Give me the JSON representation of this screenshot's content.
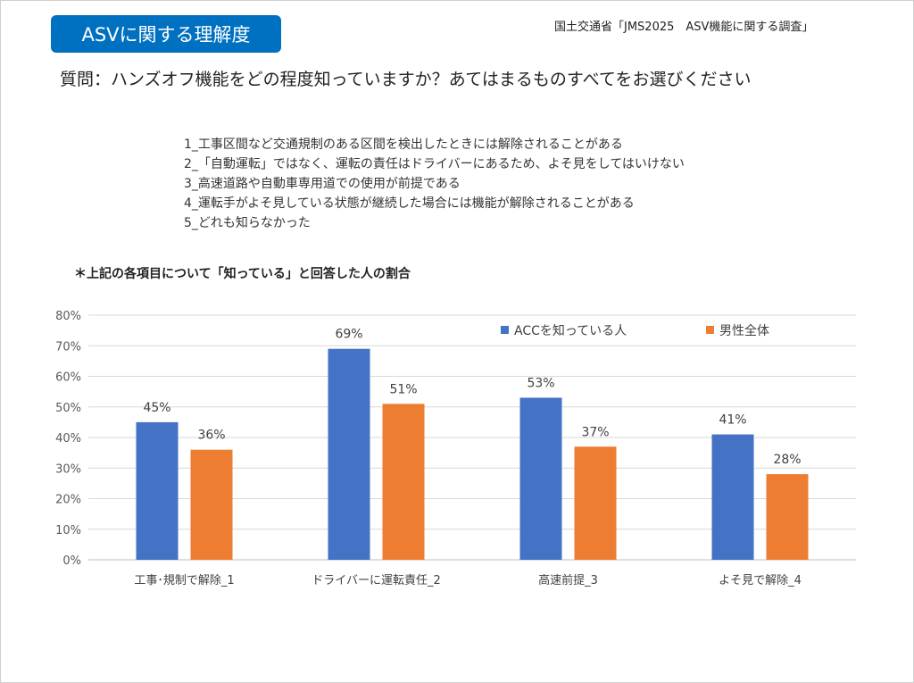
{
  "header": {
    "badge": "ASVに関する理解度",
    "source": "国土交通省「JMS2025　ASV機能に関する調査」"
  },
  "question": "質問：ハンズオフ機能をどの程度知っていますか？あてはまるものすべてをお選びください",
  "options": [
    "1_工事区間など交通規制のある区間を検出したときには解除されることがある",
    "2_「自動運転」ではなく、運転の責任はドライバーにあるため、よそ見をしてはいけない",
    "3_高速道路や自動車専用道での使用が前提である",
    "4_運転手がよそ見している状態が継続した場合には機能が解除されることがある",
    "5_どれも知らなかった"
  ],
  "note": "＊上記の各項目について「知っている」と回答した人の割合",
  "chart_data": {
    "type": "bar",
    "categories": [
      "工事･規制で解除_1",
      "ドライバーに運転責任_2",
      "高速前提_3",
      "よそ見で解除_4"
    ],
    "series": [
      {
        "name": "ACCを知っている人",
        "color": "#4472c4",
        "values": [
          45,
          69,
          53,
          41
        ]
      },
      {
        "name": "男性全体",
        "color": "#ed7d31",
        "values": [
          36,
          51,
          37,
          28
        ]
      }
    ],
    "ylim": [
      0,
      80
    ],
    "yticks": [
      0,
      10,
      20,
      30,
      40,
      50,
      60,
      70,
      80
    ],
    "tick_suffix": "%",
    "grid": true,
    "legend": "top-right"
  }
}
